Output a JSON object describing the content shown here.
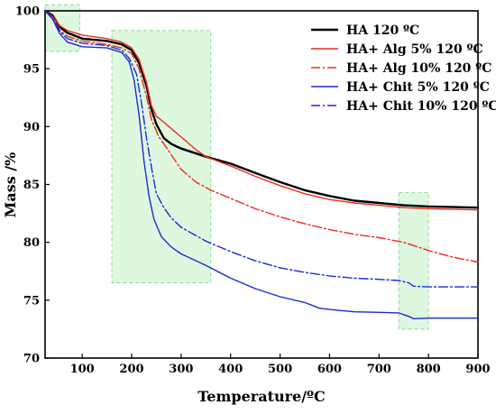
{
  "chart_data": {
    "type": "line",
    "title": "",
    "xlabel": "Temperature/ºC",
    "ylabel": "Mass /%",
    "xlim": [
      25,
      900
    ],
    "ylim": [
      70,
      100
    ],
    "xticks": [
      100,
      200,
      300,
      400,
      500,
      600,
      700,
      800,
      900
    ],
    "yticks": [
      70,
      75,
      80,
      85,
      90,
      95,
      100
    ],
    "grid": false,
    "legend_position": "top-right",
    "highlight_regions": [
      {
        "x": [
          25,
          95
        ],
        "y": [
          96.5,
          100.5
        ]
      },
      {
        "x": [
          160,
          360
        ],
        "y": [
          76.5,
          98.3
        ]
      },
      {
        "x": [
          740,
          800
        ],
        "y": [
          72.5,
          84.3
        ]
      }
    ],
    "series": [
      {
        "name": "HA 120 ºC",
        "color": "#000000",
        "dash": "solid",
        "width": 2.4,
        "points": [
          [
            25,
            100
          ],
          [
            40,
            99.6
          ],
          [
            55,
            98.6
          ],
          [
            70,
            98.1
          ],
          [
            100,
            97.6
          ],
          [
            150,
            97.4
          ],
          [
            180,
            97.1
          ],
          [
            200,
            96.6
          ],
          [
            215,
            95.5
          ],
          [
            230,
            93.5
          ],
          [
            240,
            91.5
          ],
          [
            250,
            90.2
          ],
          [
            265,
            89.0
          ],
          [
            280,
            88.5
          ],
          [
            300,
            88.1
          ],
          [
            350,
            87.4
          ],
          [
            400,
            86.8
          ],
          [
            450,
            86.0
          ],
          [
            500,
            85.2
          ],
          [
            550,
            84.5
          ],
          [
            600,
            84.0
          ],
          [
            650,
            83.6
          ],
          [
            700,
            83.4
          ],
          [
            750,
            83.2
          ],
          [
            800,
            83.1
          ],
          [
            900,
            83.0
          ]
        ]
      },
      {
        "name": "HA+ Alg 5% 120 ºC",
        "color": "#ee2a1a",
        "dash": "solid",
        "width": 1.4,
        "points": [
          [
            25,
            100
          ],
          [
            40,
            99.5
          ],
          [
            55,
            98.7
          ],
          [
            70,
            98.3
          ],
          [
            100,
            97.9
          ],
          [
            150,
            97.6
          ],
          [
            180,
            97.3
          ],
          [
            200,
            96.8
          ],
          [
            215,
            95.8
          ],
          [
            230,
            93.8
          ],
          [
            240,
            91.8
          ],
          [
            250,
            90.9
          ],
          [
            270,
            90.2
          ],
          [
            300,
            89.1
          ],
          [
            330,
            88.0
          ],
          [
            350,
            87.4
          ],
          [
            400,
            86.6
          ],
          [
            450,
            85.7
          ],
          [
            500,
            84.9
          ],
          [
            550,
            84.2
          ],
          [
            600,
            83.7
          ],
          [
            650,
            83.4
          ],
          [
            700,
            83.2
          ],
          [
            750,
            83.0
          ],
          [
            800,
            82.9
          ],
          [
            900,
            82.8
          ]
        ]
      },
      {
        "name": "HA+ Alg 10% 120 ºC",
        "color": "#ee2a1a",
        "dash": "10,3,2,3",
        "width": 1.4,
        "points": [
          [
            25,
            100
          ],
          [
            40,
            99.4
          ],
          [
            55,
            98.3
          ],
          [
            70,
            97.8
          ],
          [
            100,
            97.4
          ],
          [
            150,
            97.1
          ],
          [
            180,
            96.8
          ],
          [
            200,
            96.3
          ],
          [
            215,
            95.0
          ],
          [
            230,
            92.6
          ],
          [
            240,
            90.6
          ],
          [
            255,
            89.1
          ],
          [
            270,
            88.2
          ],
          [
            300,
            86.3
          ],
          [
            330,
            85.2
          ],
          [
            360,
            84.5
          ],
          [
            400,
            83.8
          ],
          [
            450,
            82.9
          ],
          [
            500,
            82.2
          ],
          [
            550,
            81.6
          ],
          [
            600,
            81.1
          ],
          [
            650,
            80.7
          ],
          [
            700,
            80.4
          ],
          [
            750,
            80.0
          ],
          [
            800,
            79.3
          ],
          [
            850,
            78.7
          ],
          [
            900,
            78.3
          ]
        ]
      },
      {
        "name": "HA+ Chit 5% 120 ºC",
        "color": "#1a2bd6",
        "dash": "solid",
        "width": 1.4,
        "points": [
          [
            25,
            100
          ],
          [
            40,
            99.3
          ],
          [
            55,
            98.0
          ],
          [
            70,
            97.3
          ],
          [
            100,
            96.9
          ],
          [
            150,
            96.8
          ],
          [
            180,
            96.4
          ],
          [
            195,
            95.6
          ],
          [
            205,
            94.0
          ],
          [
            215,
            91.0
          ],
          [
            225,
            87.0
          ],
          [
            235,
            84.0
          ],
          [
            245,
            82.0
          ],
          [
            260,
            80.5
          ],
          [
            280,
            79.6
          ],
          [
            300,
            79.0
          ],
          [
            350,
            78.0
          ],
          [
            400,
            76.9
          ],
          [
            450,
            76.0
          ],
          [
            500,
            75.3
          ],
          [
            550,
            74.8
          ],
          [
            580,
            74.3
          ],
          [
            600,
            74.2
          ],
          [
            650,
            74.0
          ],
          [
            700,
            73.95
          ],
          [
            740,
            73.9
          ],
          [
            760,
            73.6
          ],
          [
            770,
            73.4
          ],
          [
            800,
            73.45
          ],
          [
            900,
            73.45
          ]
        ]
      },
      {
        "name": "HA+ Chit 10% 120 ºC",
        "color": "#1a2bd6",
        "dash": "10,3,2,3",
        "width": 1.4,
        "points": [
          [
            25,
            100
          ],
          [
            40,
            99.4
          ],
          [
            55,
            98.2
          ],
          [
            70,
            97.6
          ],
          [
            100,
            97.2
          ],
          [
            150,
            97.0
          ],
          [
            180,
            96.6
          ],
          [
            195,
            95.9
          ],
          [
            210,
            94.5
          ],
          [
            220,
            92.0
          ],
          [
            230,
            89.0
          ],
          [
            240,
            86.5
          ],
          [
            250,
            84.2
          ],
          [
            265,
            83.0
          ],
          [
            280,
            82.1
          ],
          [
            300,
            81.3
          ],
          [
            350,
            80.1
          ],
          [
            400,
            79.2
          ],
          [
            450,
            78.4
          ],
          [
            500,
            77.8
          ],
          [
            550,
            77.4
          ],
          [
            600,
            77.1
          ],
          [
            650,
            76.9
          ],
          [
            700,
            76.8
          ],
          [
            740,
            76.7
          ],
          [
            760,
            76.5
          ],
          [
            770,
            76.2
          ],
          [
            800,
            76.15
          ],
          [
            900,
            76.15
          ]
        ]
      }
    ]
  }
}
